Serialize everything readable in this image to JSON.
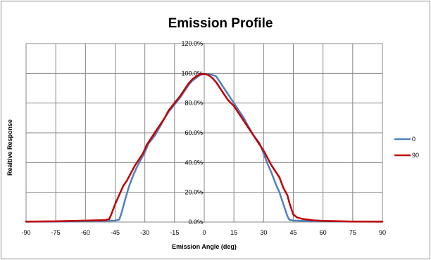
{
  "chart_data": {
    "type": "line",
    "title": "Emission Profile",
    "xlabel": "Emission Angle (deg)",
    "ylabel": "Realtive Response",
    "xlim": [
      -90,
      90
    ],
    "ylim": [
      0,
      120
    ],
    "x_ticks": [
      "-90",
      "-75",
      "-60",
      "-45",
      "-30",
      "-15",
      "0",
      "15",
      "30",
      "45",
      "60",
      "75",
      "90"
    ],
    "y_ticks": [
      "0.0%",
      "20.0%",
      "40.0%",
      "60.0%",
      "80.0%",
      "100.0%",
      "120.0%"
    ],
    "grid": true,
    "legend_position": "right",
    "series": [
      {
        "name": "0",
        "color": "#4f81bd",
        "points": [
          [
            -90,
            0.3
          ],
          [
            -75,
            0.3
          ],
          [
            -60,
            0.5
          ],
          [
            -50,
            0.8
          ],
          [
            -45,
            1.0
          ],
          [
            -43,
            1.5
          ],
          [
            -42,
            5
          ],
          [
            -40,
            15
          ],
          [
            -38,
            24
          ],
          [
            -36,
            31
          ],
          [
            -34,
            37
          ],
          [
            -32,
            42
          ],
          [
            -30,
            47
          ],
          [
            -28,
            53
          ],
          [
            -25,
            58
          ],
          [
            -22,
            65
          ],
          [
            -20,
            70
          ],
          [
            -18,
            74
          ],
          [
            -15,
            79
          ],
          [
            -12,
            84
          ],
          [
            -10,
            88
          ],
          [
            -8,
            92
          ],
          [
            -6,
            95
          ],
          [
            -4,
            97
          ],
          [
            -2,
            99
          ],
          [
            0,
            99.5
          ],
          [
            2,
            99.5
          ],
          [
            4,
            99
          ],
          [
            6,
            98
          ],
          [
            8,
            94
          ],
          [
            10,
            90
          ],
          [
            12,
            86
          ],
          [
            15,
            80
          ],
          [
            18,
            74
          ],
          [
            20,
            70
          ],
          [
            22,
            65
          ],
          [
            25,
            58
          ],
          [
            28,
            53
          ],
          [
            30,
            46
          ],
          [
            32,
            39
          ],
          [
            34,
            33
          ],
          [
            36,
            26
          ],
          [
            38,
            20
          ],
          [
            40,
            12
          ],
          [
            42,
            4
          ],
          [
            43,
            1.5
          ],
          [
            45,
            1.0
          ],
          [
            50,
            0.8
          ],
          [
            60,
            0.5
          ],
          [
            75,
            0.3
          ],
          [
            90,
            0.3
          ]
        ]
      },
      {
        "name": "90",
        "color": "#c00000",
        "points": [
          [
            -90,
            0.3
          ],
          [
            -75,
            0.5
          ],
          [
            -60,
            1.0
          ],
          [
            -50,
            1.3
          ],
          [
            -48,
            2
          ],
          [
            -47,
            5
          ],
          [
            -45,
            12
          ],
          [
            -43,
            18
          ],
          [
            -41,
            24
          ],
          [
            -39,
            28
          ],
          [
            -37,
            33
          ],
          [
            -35,
            38
          ],
          [
            -33,
            42
          ],
          [
            -31,
            46
          ],
          [
            -29,
            52
          ],
          [
            -27,
            56
          ],
          [
            -25,
            60
          ],
          [
            -22,
            66
          ],
          [
            -20,
            70
          ],
          [
            -18,
            75
          ],
          [
            -15,
            80
          ],
          [
            -12,
            85
          ],
          [
            -10,
            89
          ],
          [
            -8,
            93
          ],
          [
            -6,
            96
          ],
          [
            -4,
            98
          ],
          [
            -2,
            99.5
          ],
          [
            0,
            99.5
          ],
          [
            2,
            99
          ],
          [
            4,
            97
          ],
          [
            6,
            94
          ],
          [
            8,
            90
          ],
          [
            10,
            86
          ],
          [
            12,
            82
          ],
          [
            15,
            78
          ],
          [
            18,
            72
          ],
          [
            20,
            68
          ],
          [
            22,
            64
          ],
          [
            25,
            58
          ],
          [
            28,
            52
          ],
          [
            30,
            48
          ],
          [
            32,
            43
          ],
          [
            34,
            38
          ],
          [
            36,
            34
          ],
          [
            38,
            30
          ],
          [
            40,
            23
          ],
          [
            42,
            18
          ],
          [
            43,
            13
          ],
          [
            45,
            5
          ],
          [
            47,
            3
          ],
          [
            50,
            2
          ],
          [
            55,
            1.2
          ],
          [
            60,
            0.8
          ],
          [
            75,
            0.4
          ],
          [
            90,
            0.3
          ]
        ]
      }
    ]
  }
}
